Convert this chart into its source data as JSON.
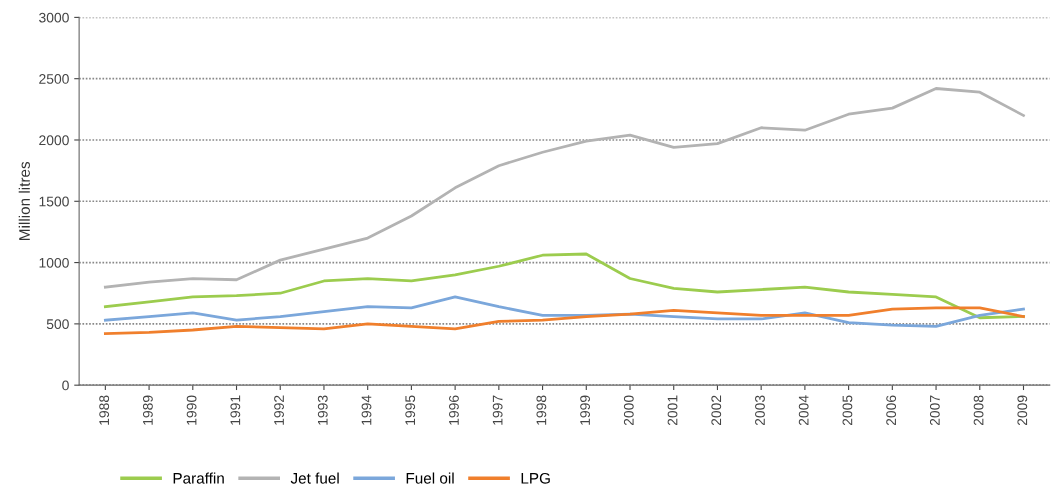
{
  "chart_data": {
    "type": "line",
    "ylabel": "Million litres",
    "categories": [
      "1988",
      "1989",
      "1990",
      "1991",
      "1992",
      "1993",
      "1994",
      "1995",
      "1996",
      "1997",
      "1998",
      "1999",
      "2000",
      "2001",
      "2002",
      "2003",
      "2004",
      "2005",
      "2006",
      "2007",
      "2008",
      "2009"
    ],
    "series": [
      {
        "name": "Paraffin",
        "color": "#9ccc4e",
        "values": [
          640,
          680,
          720,
          730,
          750,
          850,
          870,
          850,
          900,
          970,
          1060,
          1070,
          870,
          790,
          760,
          780,
          800,
          760,
          740,
          720,
          550,
          560
        ]
      },
      {
        "name": "Jet fuel",
        "color": "#b3b3b3",
        "values": [
          800,
          840,
          870,
          860,
          1020,
          1110,
          1200,
          1380,
          1610,
          1790,
          1900,
          1990,
          2040,
          1940,
          1970,
          2100,
          2080,
          2210,
          2260,
          2420,
          2390,
          2200
        ]
      },
      {
        "name": "Fuel oil",
        "color": "#7ba7db",
        "values": [
          530,
          560,
          590,
          530,
          560,
          600,
          640,
          630,
          720,
          640,
          570,
          570,
          580,
          560,
          540,
          540,
          590,
          510,
          490,
          480,
          570,
          620
        ]
      },
      {
        "name": "LPG",
        "color": "#f07f2c",
        "values": [
          420,
          430,
          450,
          480,
          470,
          460,
          500,
          480,
          460,
          520,
          530,
          560,
          580,
          610,
          590,
          570,
          570,
          570,
          620,
          630,
          630,
          560
        ]
      }
    ],
    "ylim": [
      0,
      3000
    ],
    "yticks": [
      0,
      500,
      1000,
      1500,
      2000,
      2500,
      3000
    ],
    "grid": "y",
    "legend": "bottom",
    "marker": "none",
    "line_style": "solid"
  }
}
